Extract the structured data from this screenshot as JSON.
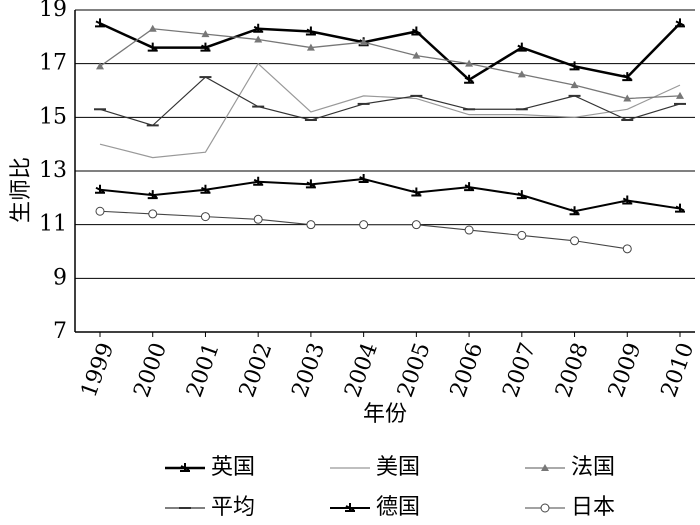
{
  "chart_data": {
    "type": "line",
    "x_label": "年份",
    "y_label": "生师比",
    "categories": [
      "1999",
      "2000",
      "2001",
      "2002",
      "2003",
      "2004",
      "2005",
      "2006",
      "2007",
      "2008",
      "2009",
      "2010"
    ],
    "ylim": [
      7,
      19
    ],
    "yticks": [
      7,
      9,
      11,
      13,
      15,
      17,
      19
    ],
    "grid": true,
    "series": [
      {
        "name": "英国",
        "color": "#000000",
        "marker": "star",
        "width": 2.5,
        "values": [
          18.5,
          17.6,
          17.6,
          18.3,
          18.2,
          17.8,
          18.2,
          16.4,
          17.6,
          16.9,
          16.5,
          18.5
        ]
      },
      {
        "name": "美国",
        "color": "#999999",
        "marker": "none",
        "width": 1.2,
        "values": [
          14.0,
          13.5,
          13.7,
          17.0,
          15.2,
          15.8,
          15.7,
          15.1,
          15.1,
          15.0,
          15.3,
          16.2
        ]
      },
      {
        "name": "法国",
        "color": "#777777",
        "marker": "triangle",
        "width": 1.3,
        "values": [
          16.9,
          18.3,
          18.1,
          17.9,
          17.6,
          17.8,
          17.3,
          17.0,
          16.6,
          16.2,
          15.7,
          15.8
        ]
      },
      {
        "name": "平均",
        "color": "#333333",
        "marker": "dash",
        "width": 1.2,
        "values": [
          15.3,
          14.7,
          16.5,
          15.4,
          14.9,
          15.5,
          15.8,
          15.3,
          15.3,
          15.8,
          14.9,
          15.5
        ]
      },
      {
        "name": "德国",
        "color": "#000000",
        "marker": "star",
        "width": 2,
        "values": [
          12.3,
          12.1,
          12.3,
          12.6,
          12.5,
          12.7,
          12.2,
          12.4,
          12.1,
          11.5,
          11.9,
          11.6
        ]
      },
      {
        "name": "日本",
        "color": "#444444",
        "marker": "circle",
        "width": 1.1,
        "values": [
          11.5,
          11.4,
          11.3,
          11.2,
          11.0,
          11.0,
          11.0,
          10.8,
          10.6,
          10.4,
          10.1,
          null
        ]
      }
    ]
  }
}
